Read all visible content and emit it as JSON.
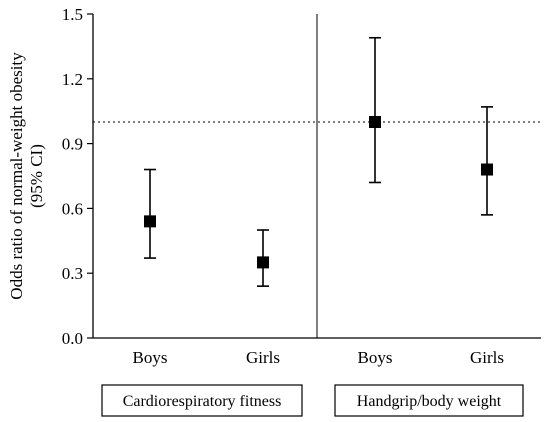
{
  "chart_data": {
    "type": "scatter",
    "subtype": "point-with-error-bars",
    "ylabel_lines": [
      "Odds ratio of normal-weight obesity",
      "(95% CI)"
    ],
    "ylim": [
      0.0,
      1.5
    ],
    "yticks": [
      "0.0",
      "0.3",
      "0.6",
      "0.9",
      "1.2",
      "1.5"
    ],
    "reference_line": {
      "y": 1.0,
      "style": "dotted"
    },
    "grid": false,
    "groups": [
      {
        "label": "Cardiorespiratory fitness",
        "categories": [
          "Boys",
          "Girls"
        ]
      },
      {
        "label": "Handgrip/body weight",
        "categories": [
          "Boys",
          "Girls"
        ]
      }
    ],
    "points": [
      {
        "group": "Cardiorespiratory fitness",
        "category": "Boys",
        "value": 0.54,
        "lower": 0.37,
        "upper": 0.78
      },
      {
        "group": "Cardiorespiratory fitness",
        "category": "Girls",
        "value": 0.35,
        "lower": 0.24,
        "upper": 0.5
      },
      {
        "group": "Handgrip/body weight",
        "category": "Boys",
        "value": 1.0,
        "lower": 0.72,
        "upper": 1.39
      },
      {
        "group": "Handgrip/body weight",
        "category": "Girls",
        "value": 0.78,
        "lower": 0.57,
        "upper": 1.07
      }
    ],
    "colors": {
      "marker": "#000000",
      "axis": "#000000"
    }
  }
}
